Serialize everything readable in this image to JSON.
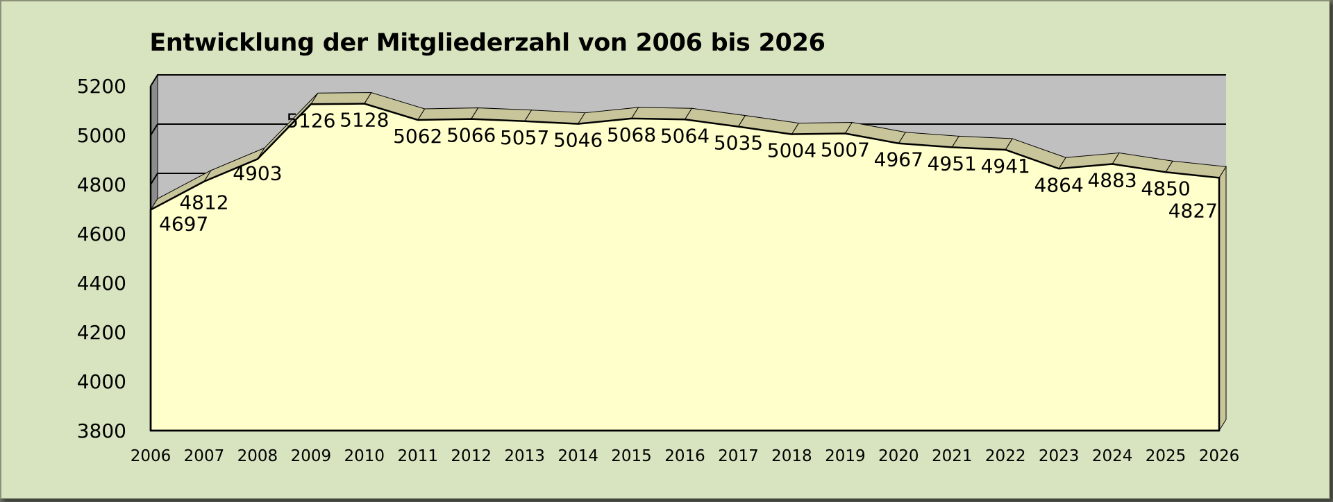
{
  "chart_data": {
    "type": "area",
    "title": "Entwicklung der Mitgliederzahl von 2006 bis 2026",
    "xlabel": "",
    "ylabel": "",
    "categories": [
      "2006",
      "2007",
      "2008",
      "2009",
      "2010",
      "2011",
      "2012",
      "2013",
      "2014",
      "2015",
      "2016",
      "2017",
      "2018",
      "2019",
      "2020",
      "2021",
      "2022",
      "2023",
      "2024",
      "2025",
      "2026"
    ],
    "values": [
      4697,
      4812,
      4903,
      5126,
      5128,
      5062,
      5066,
      5057,
      5046,
      5068,
      5064,
      5035,
      5004,
      5007,
      4967,
      4951,
      4941,
      4864,
      4883,
      4850,
      4827
    ],
    "yticks": [
      "3800",
      "4000",
      "4200",
      "4400",
      "4600",
      "4800",
      "5000",
      "5200"
    ],
    "ylim": [
      3800,
      5200
    ],
    "grid": true,
    "legend": "none",
    "colors": {
      "area_fill": "#ffffcc",
      "area_top": "#c8c59a",
      "wall": "#c0c0c0",
      "wall_side": "#8c8c8c",
      "background": "#d8e4bf"
    }
  }
}
